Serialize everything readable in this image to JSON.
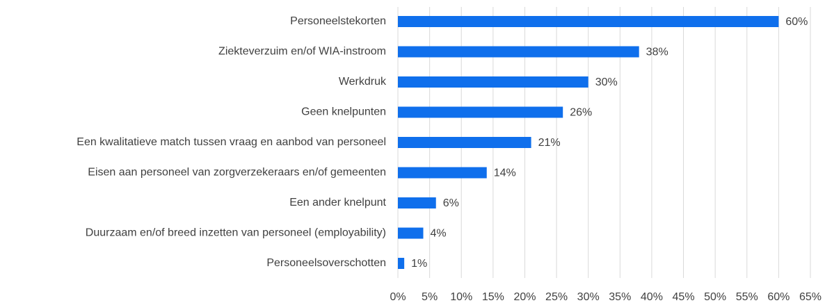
{
  "chart_data": {
    "type": "barh",
    "categories": [
      "Personeelstekorten",
      "Ziekteverzuim en/of WIA-instroom",
      "Werkdruk",
      "Geen knelpunten",
      "Een kwalitatieve match tussen vraag en aanbod van personeel",
      "Eisen aan personeel van zorgverzekeraars en/of gemeenten",
      "Een ander knelpunt",
      "Duurzaam en/of breed inzetten van personeel (employability)",
      "Personeelsoverschotten"
    ],
    "values": [
      60,
      38,
      30,
      26,
      21,
      14,
      6,
      4,
      1
    ],
    "value_labels": [
      "60%",
      "38%",
      "30%",
      "26%",
      "21%",
      "14%",
      "6%",
      "4%",
      "1%"
    ],
    "color": "#0f6fec",
    "xlim": [
      0,
      65
    ],
    "xticks": [
      {
        "value": 0,
        "label": "0%"
      },
      {
        "value": 5,
        "label": "5%"
      },
      {
        "value": 10,
        "label": "10%"
      },
      {
        "value": 15,
        "label": "15%"
      },
      {
        "value": 20,
        "label": "20%"
      },
      {
        "value": 25,
        "label": "25%"
      },
      {
        "value": 30,
        "label": "30%"
      },
      {
        "value": 35,
        "label": "35%"
      },
      {
        "value": 40,
        "label": "40%"
      },
      {
        "value": 45,
        "label": "45%"
      },
      {
        "value": 50,
        "label": "50%"
      },
      {
        "value": 55,
        "label": "55%"
      },
      {
        "value": 60,
        "label": "60%"
      },
      {
        "value": 65,
        "label": "65%"
      }
    ],
    "grid": true
  }
}
